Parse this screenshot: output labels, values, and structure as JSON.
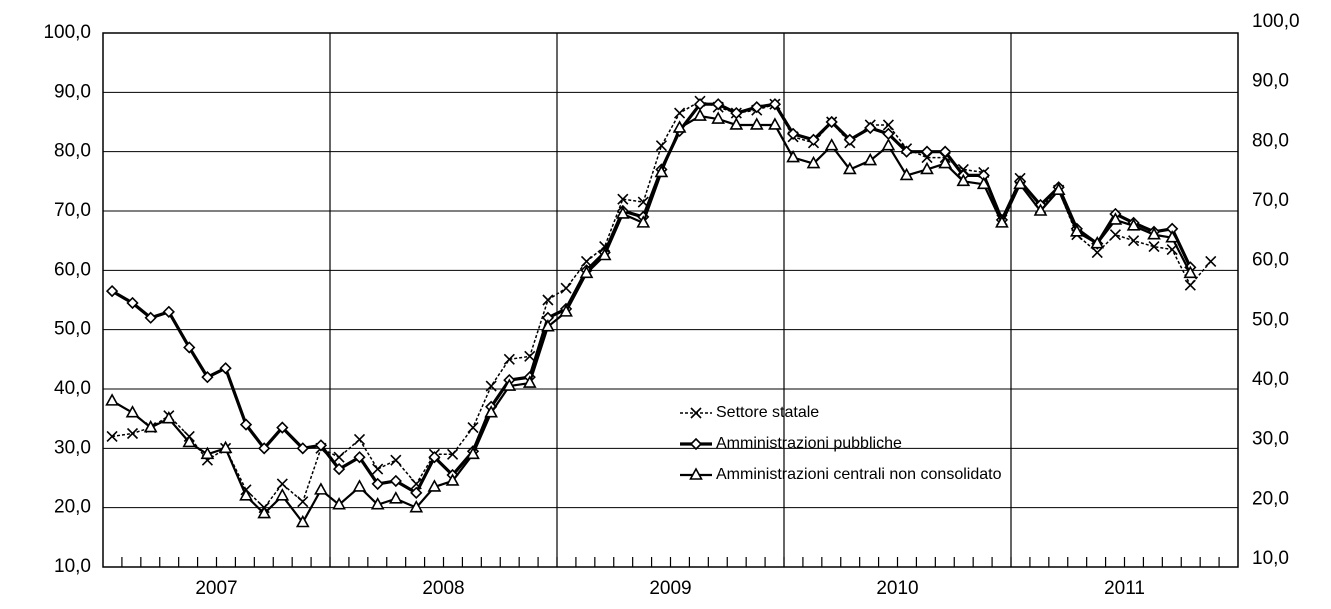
{
  "chart_data": {
    "type": "line",
    "x": [
      2007.04,
      2007.13,
      2007.21,
      2007.29,
      2007.38,
      2007.46,
      2007.54,
      2007.63,
      2007.71,
      2007.79,
      2007.88,
      2007.96,
      2008.04,
      2008.13,
      2008.21,
      2008.29,
      2008.38,
      2008.46,
      2008.54,
      2008.63,
      2008.71,
      2008.79,
      2008.88,
      2008.96,
      2009.04,
      2009.13,
      2009.21,
      2009.29,
      2009.38,
      2009.46,
      2009.54,
      2009.63,
      2009.71,
      2009.79,
      2009.88,
      2009.96,
      2010.04,
      2010.13,
      2010.21,
      2010.29,
      2010.38,
      2010.46,
      2010.54,
      2010.63,
      2010.71,
      2010.79,
      2010.88,
      2010.96,
      2011.04,
      2011.13,
      2011.21,
      2011.29,
      2011.38,
      2011.46,
      2011.54,
      2011.63,
      2011.71,
      2011.79,
      2011.88,
      2011.96
    ],
    "xlim": [
      2007,
      2012
    ],
    "xticks": [
      {
        "value": 2007.5,
        "label": "2007"
      },
      {
        "value": 2008.5,
        "label": "2008"
      },
      {
        "value": 2009.5,
        "label": "2009"
      },
      {
        "value": 2010.5,
        "label": "2010"
      },
      {
        "value": 2011.5,
        "label": "2011"
      }
    ],
    "ylim": [
      10,
      100
    ],
    "yticks": [
      {
        "value": 10,
        "label": "10,0"
      },
      {
        "value": 20,
        "label": "20,0"
      },
      {
        "value": 30,
        "label": "30,0"
      },
      {
        "value": 40,
        "label": "40,0"
      },
      {
        "value": 50,
        "label": "50,0"
      },
      {
        "value": 60,
        "label": "60,0"
      },
      {
        "value": 70,
        "label": "70,0"
      },
      {
        "value": 80,
        "label": "80,0"
      },
      {
        "value": 90,
        "label": "90,0"
      },
      {
        "value": 100,
        "label": "100,0"
      }
    ],
    "y2lim": [
      10,
      100
    ],
    "y2ticks": [
      {
        "value": 10,
        "label": "10,0"
      },
      {
        "value": 20,
        "label": "20,0"
      },
      {
        "value": 30,
        "label": "30,0"
      },
      {
        "value": 40,
        "label": "40,0"
      },
      {
        "value": 50,
        "label": "50,0"
      },
      {
        "value": 60,
        "label": "60,0"
      },
      {
        "value": 70,
        "label": "70,0"
      },
      {
        "value": 80,
        "label": "80,0"
      },
      {
        "value": 90,
        "label": "90,0"
      },
      {
        "value": 100,
        "label": "100,0"
      }
    ],
    "grid": true,
    "series": [
      {
        "name": "Settore statale",
        "color": "#000000",
        "marker": "x",
        "values": [
          32,
          32.5,
          33.5,
          35.5,
          32,
          28,
          30,
          23,
          20,
          24,
          21,
          30,
          28.5,
          31.5,
          26.5,
          28,
          24,
          29,
          29,
          33.5,
          40.5,
          45,
          45.5,
          55,
          57,
          61.5,
          64,
          72,
          71.5,
          81,
          86.5,
          88.5,
          87.5,
          86.5,
          87,
          88,
          82.5,
          81.5,
          85,
          81.5,
          84.5,
          84.5,
          80.5,
          79,
          79,
          77,
          76.5,
          68.5,
          75.5,
          70.5,
          73.5,
          66,
          63,
          66,
          65,
          64,
          63.5,
          57.5,
          61.5,
          null
        ]
      },
      {
        "name": "Amministrazioni pubbliche",
        "color": "#000000",
        "marker": "diamond",
        "values": [
          56.5,
          54.5,
          52,
          53,
          47,
          42,
          43.5,
          34,
          30,
          33.5,
          30,
          30.5,
          26.5,
          28.5,
          24,
          24.5,
          22.5,
          28.5,
          25.5,
          29.5,
          37,
          41.5,
          42,
          52,
          53.5,
          60,
          63,
          70,
          69,
          77,
          83.5,
          88,
          88,
          86.5,
          87.5,
          88,
          83,
          82,
          85,
          82,
          84,
          83,
          80,
          80,
          80,
          76,
          76,
          68.5,
          75,
          71,
          74,
          67,
          64.5,
          69.5,
          68,
          66.5,
          67,
          60.5,
          null,
          null
        ]
      },
      {
        "name": "Amministrazioni centrali non consolidato",
        "color": "#000000",
        "marker": "triangle",
        "values": [
          38,
          36,
          33.5,
          35,
          31,
          29,
          30,
          22,
          19,
          22,
          17.5,
          23,
          20.5,
          23.5,
          20.5,
          21.5,
          20,
          23.5,
          24.5,
          29,
          36,
          40.5,
          41,
          50.5,
          53,
          59.5,
          62.5,
          69.5,
          68,
          76.5,
          84,
          86,
          85.5,
          84.5,
          84.5,
          84.5,
          79,
          78,
          81,
          77,
          78.5,
          81,
          76,
          77,
          78,
          75,
          74.5,
          68,
          74.5,
          70,
          73.5,
          66.5,
          64.5,
          68.5,
          67.5,
          66,
          65.5,
          59.5,
          null,
          null
        ]
      }
    ]
  }
}
